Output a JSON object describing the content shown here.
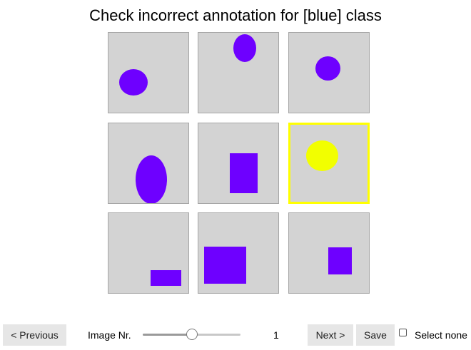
{
  "header": {
    "title": "Check incorrect annotation for [blue] class"
  },
  "colors": {
    "tile_background": "#d3d3d3",
    "shape_blue": "#6e00ff",
    "shape_yellow": "#f2ff00",
    "selection_border": "#ffff00",
    "button_background": "#e6e6e6"
  },
  "grid": {
    "tiles": [
      {
        "shape": "ellipse",
        "color": "blue",
        "selected": false
      },
      {
        "shape": "ellipse",
        "color": "blue",
        "selected": false
      },
      {
        "shape": "ellipse",
        "color": "blue",
        "selected": false
      },
      {
        "shape": "ellipse",
        "color": "blue",
        "selected": false
      },
      {
        "shape": "rectangle",
        "color": "blue",
        "selected": false
      },
      {
        "shape": "ellipse",
        "color": "yellow",
        "selected": true
      },
      {
        "shape": "rectangle",
        "color": "blue",
        "selected": false
      },
      {
        "shape": "rectangle",
        "color": "blue",
        "selected": false
      },
      {
        "shape": "rectangle",
        "color": "blue",
        "selected": false
      }
    ]
  },
  "controls": {
    "previous_label": "< Previous",
    "image_nr_label": "Image Nr.",
    "slider_value_fraction": 0.5,
    "image_number": "1",
    "next_label": "Next >",
    "save_label": "Save",
    "select_none_label": "Select none",
    "select_none_checked": false
  }
}
